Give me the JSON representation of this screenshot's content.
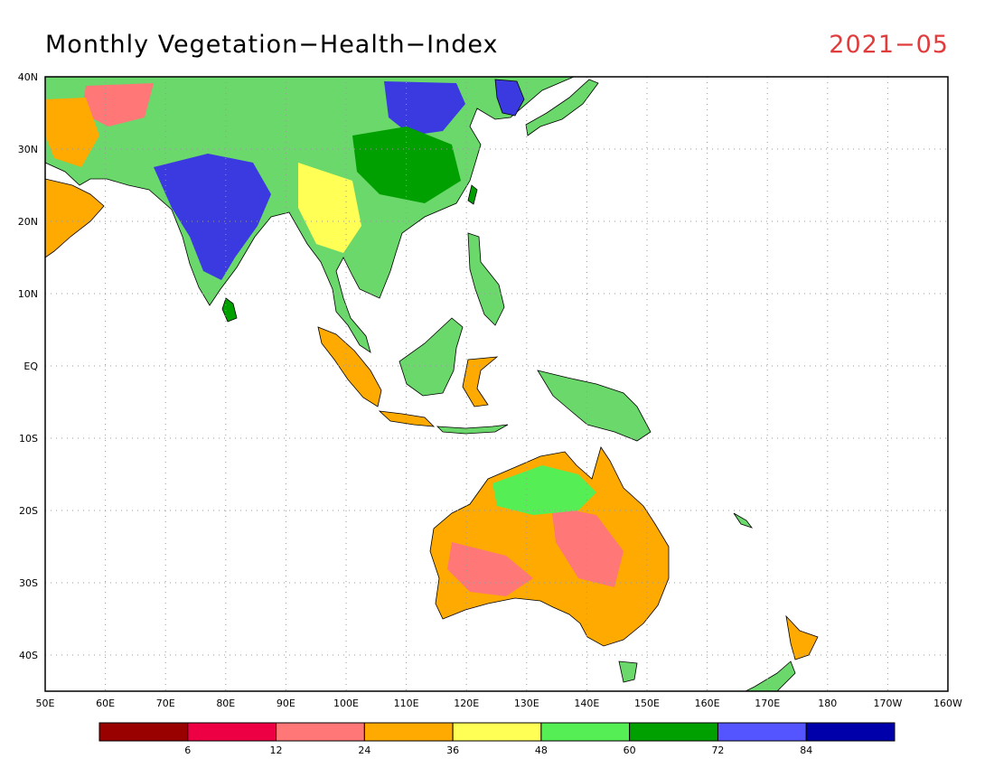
{
  "header": {
    "title": "Monthly Vegetation−Health−Index",
    "date": "2021−05",
    "date_color": "#e03c3c"
  },
  "map": {
    "lat_labels": [
      "40N",
      "30N",
      "20N",
      "10N",
      "EQ",
      "10S",
      "20S",
      "30S",
      "40S"
    ],
    "lon_labels": [
      "50E",
      "60E",
      "70E",
      "80E",
      "90E",
      "100E",
      "110E",
      "120E",
      "130E",
      "140E",
      "150E",
      "160E",
      "170E",
      "180",
      "170W",
      "160W"
    ],
    "gridlines": true
  },
  "colorbar": {
    "colors": [
      "#990000",
      "#ee0044",
      "#ff7777",
      "#ffaa00",
      "#ffff55",
      "#55ee55",
      "#00a000",
      "#5555ff",
      "#0000aa"
    ],
    "tick_labels": [
      "6",
      "12",
      "24",
      "36",
      "48",
      "60",
      "72",
      "84"
    ]
  }
}
